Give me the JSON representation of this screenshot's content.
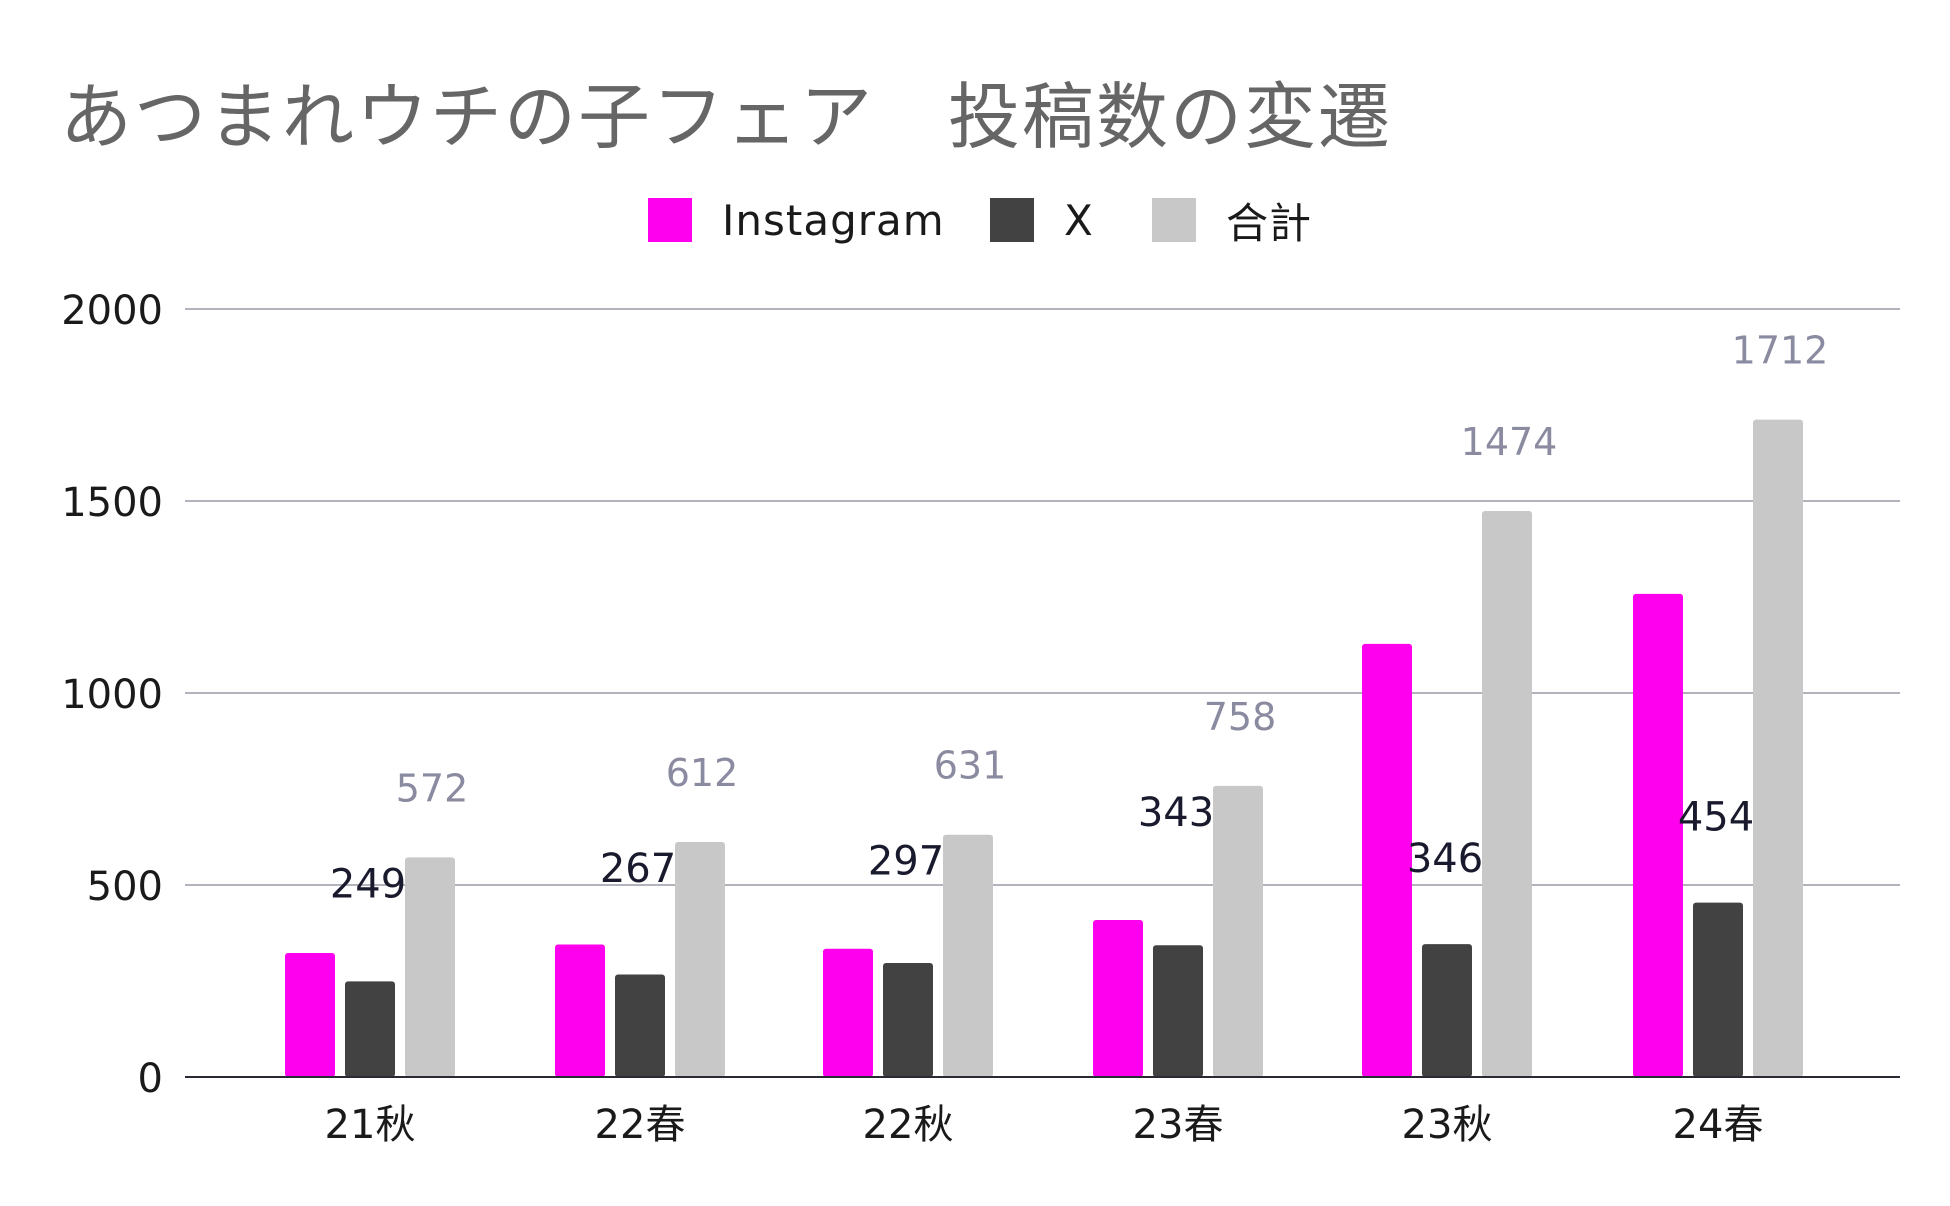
{
  "chart_data": {
    "type": "bar",
    "title": "あつまれウチの子フェア　投稿数の変遷",
    "categories": [
      "21秋",
      "22春",
      "22秋",
      "23春",
      "23秋",
      "24春"
    ],
    "series": [
      {
        "name": "Instagram",
        "color": "#ff00ee",
        "values": [
          323,
          345,
          334,
          409,
          1128,
          1258
        ],
        "labels": [
          "",
          "",
          "",
          "",
          "",
          ""
        ]
      },
      {
        "name": "X",
        "color": "#424242",
        "values": [
          249,
          267,
          297,
          343,
          346,
          454
        ],
        "labels": [
          "249",
          "267",
          "297",
          "343",
          "346",
          "454"
        ]
      },
      {
        "name": "合計",
        "color": "#c8c8c8",
        "values": [
          572,
          612,
          631,
          758,
          1474,
          1712
        ],
        "labels": [
          "572",
          "612",
          "631",
          "758",
          "1474",
          "1712"
        ]
      }
    ],
    "ylim": [
      0,
      2000
    ],
    "yticks": [
      0,
      500,
      1000,
      1500,
      2000
    ],
    "xlabel": "",
    "ylabel": "",
    "grid": true,
    "legend_position": "top"
  }
}
